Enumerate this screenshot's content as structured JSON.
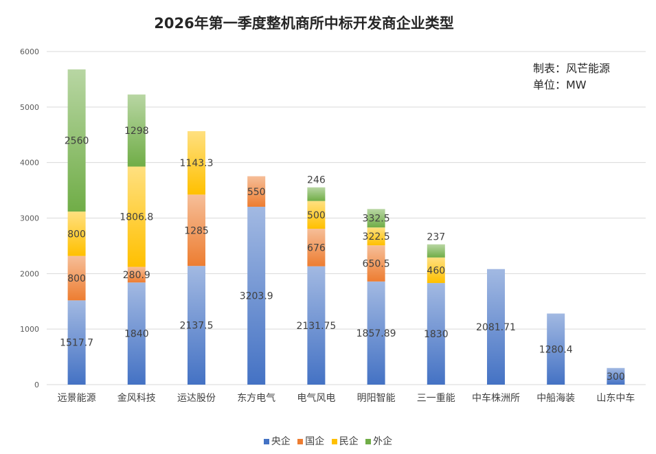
{
  "chart_data": {
    "type": "bar",
    "stacked": true,
    "title": "2026年第一季度整机商所中标开发商企业类型",
    "notes": [
      "制表：风芒能源",
      "单位：MW"
    ],
    "categories": [
      "远景能源",
      "金风科技",
      "运达股份",
      "东方电气",
      "电气风电",
      "明阳智能",
      "三一重能",
      "中车株洲所",
      "中船海装",
      "山东中车"
    ],
    "ylim": [
      0,
      6000
    ],
    "yticks": [
      0,
      1000,
      2000,
      3000,
      4000,
      5000,
      6000
    ],
    "grid": true,
    "legend_position": "bottom",
    "series": [
      {
        "name": "央企",
        "color": "#4472c4",
        "values": [
          1517.7,
          1840,
          2137.5,
          3203.9,
          2131.75,
          1857.89,
          1830,
          2081.71,
          1280.4,
          300
        ],
        "labels": [
          "1517.7",
          "1840",
          "2137.5",
          "3203.9",
          "2131.75",
          "1857.89",
          "1830",
          "2081.71",
          "1280.4",
          "300"
        ]
      },
      {
        "name": "国企",
        "color": "#ed7d31",
        "values": [
          800,
          280.9,
          1285,
          550,
          676,
          650.5,
          null,
          null,
          null,
          null
        ],
        "labels": [
          "800",
          "280.9",
          "1285",
          "550",
          "676",
          "650.5",
          "",
          "",
          "",
          ""
        ]
      },
      {
        "name": "民企",
        "color": "#ffc000",
        "values": [
          800,
          1806.8,
          1143.3,
          null,
          500,
          322.5,
          460,
          null,
          null,
          null
        ],
        "labels": [
          "800",
          "1806.8",
          "1143.3",
          "",
          "500",
          "322.5",
          "460",
          "",
          "",
          ""
        ]
      },
      {
        "name": "外企",
        "color": "#70ad47",
        "values": [
          2560,
          1298,
          null,
          null,
          246,
          332.5,
          237,
          null,
          null,
          null
        ],
        "labels": [
          "2560",
          "1298",
          "",
          "",
          "246",
          "332.5",
          "237",
          "",
          "",
          ""
        ]
      }
    ]
  }
}
